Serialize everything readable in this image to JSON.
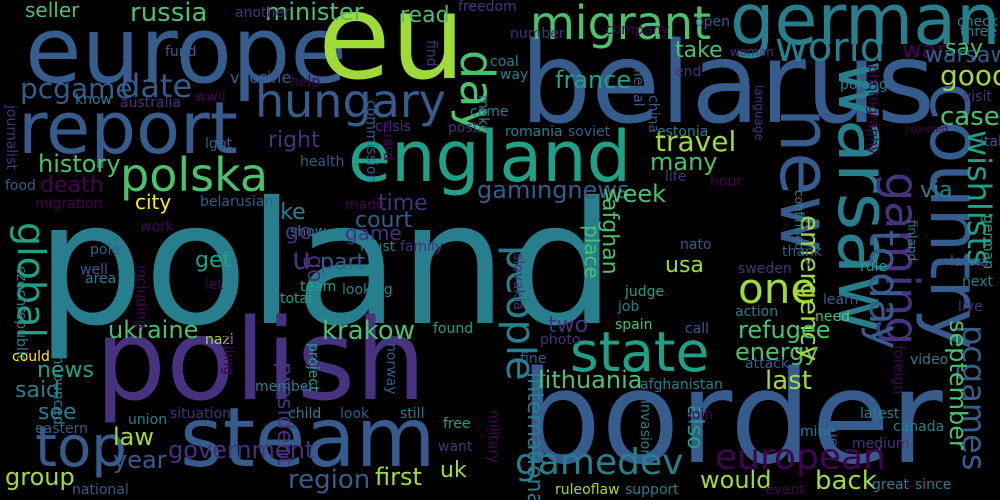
{
  "background": "#000000",
  "palette": [
    "#440154",
    "#46327e",
    "#365c8d",
    "#277f8e",
    "#1fa187",
    "#4ac16d",
    "#a0da39",
    "#fde725"
  ],
  "words": [
    {
      "text": "poland"
    },
    {
      "text": "border"
    },
    {
      "text": "polish"
    },
    {
      "text": "belarus"
    },
    {
      "text": "europe"
    },
    {
      "text": "eu"
    },
    {
      "text": "england"
    },
    {
      "text": "steam"
    },
    {
      "text": "report"
    },
    {
      "text": "germany"
    },
    {
      "text": "country"
    },
    {
      "text": "warsaw"
    },
    {
      "text": "new"
    },
    {
      "text": "state"
    },
    {
      "text": "people"
    },
    {
      "text": "top"
    },
    {
      "text": "migrant"
    },
    {
      "text": "day"
    },
    {
      "text": "hungary"
    },
    {
      "text": "polska"
    },
    {
      "text": "gaming"
    },
    {
      "text": "global"
    },
    {
      "text": "one"
    },
    {
      "text": "world"
    },
    {
      "text": "gamedev"
    },
    {
      "text": "european"
    },
    {
      "text": "today"
    },
    {
      "text": "pcgames"
    },
    {
      "text": "wishlists"
    },
    {
      "text": "travel"
    },
    {
      "text": "u"
    },
    {
      "text": "pcgame"
    },
    {
      "text": "date"
    },
    {
      "text": "russia"
    },
    {
      "text": "ukraine"
    },
    {
      "text": "lithuania"
    },
    {
      "text": "minister"
    },
    {
      "text": "history"
    },
    {
      "text": "president"
    },
    {
      "text": "international"
    },
    {
      "text": "gamingnews"
    },
    {
      "text": "france"
    },
    {
      "text": "last"
    },
    {
      "text": "government"
    },
    {
      "text": "region"
    },
    {
      "text": "first"
    },
    {
      "text": "year"
    },
    {
      "text": "law"
    },
    {
      "text": "group"
    },
    {
      "text": "would"
    },
    {
      "text": "back"
    },
    {
      "text": "energy"
    },
    {
      "text": "emergency"
    },
    {
      "text": "refugee"
    },
    {
      "text": "september"
    },
    {
      "text": "krakow"
    },
    {
      "text": "good"
    },
    {
      "text": "case"
    },
    {
      "text": "seller"
    },
    {
      "text": "read"
    },
    {
      "text": "right"
    },
    {
      "text": "death"
    },
    {
      "text": "city"
    },
    {
      "text": "time"
    },
    {
      "text": "like"
    },
    {
      "text": "court"
    },
    {
      "text": "many"
    },
    {
      "text": "week"
    },
    {
      "text": "take"
    },
    {
      "text": "war"
    },
    {
      "text": "say"
    },
    {
      "text": "go"
    },
    {
      "text": "get"
    },
    {
      "text": "part"
    },
    {
      "text": "usa"
    },
    {
      "text": "via"
    },
    {
      "text": "two"
    },
    {
      "text": "place"
    },
    {
      "text": "news"
    },
    {
      "text": "said"
    },
    {
      "text": "see"
    },
    {
      "text": "also"
    },
    {
      "text": "uk"
    },
    {
      "text": "afghan"
    },
    {
      "text": "game"
    },
    {
      "text": "warsaw"
    },
    {
      "text": "vaccine"
    },
    {
      "text": "australia"
    },
    {
      "text": "journalist"
    },
    {
      "text": "fund"
    },
    {
      "text": "know"
    },
    {
      "text": "help"
    },
    {
      "text": "wwii"
    },
    {
      "text": "commission"
    },
    {
      "text": "number"
    },
    {
      "text": "freedom"
    },
    {
      "text": "another"
    },
    {
      "text": "coal"
    },
    {
      "text": "way"
    },
    {
      "text": "make"
    },
    {
      "text": "come"
    },
    {
      "text": "post"
    },
    {
      "text": "crisis"
    },
    {
      "text": "guard"
    },
    {
      "text": "find"
    },
    {
      "text": "illegal"
    },
    {
      "text": "china"
    },
    {
      "text": "company"
    },
    {
      "text": "open"
    },
    {
      "text": "end"
    },
    {
      "text": "woman"
    },
    {
      "text": "language"
    },
    {
      "text": "poleng"
    },
    {
      "text": "photography"
    },
    {
      "text": "check"
    },
    {
      "text": "three"
    },
    {
      "text": "visit"
    },
    {
      "text": "italy"
    },
    {
      "text": "reported"
    },
    {
      "text": "romania"
    },
    {
      "text": "soviet"
    },
    {
      "text": "estonia"
    },
    {
      "text": "lgbt"
    },
    {
      "text": "health"
    },
    {
      "text": "food"
    },
    {
      "text": "belarusian"
    },
    {
      "text": "migration"
    },
    {
      "text": "made"
    },
    {
      "text": "work"
    },
    {
      "text": "show"
    },
    {
      "text": "must"
    },
    {
      "text": "family"
    },
    {
      "text": "pole"
    },
    {
      "text": "well"
    },
    {
      "text": "area"
    },
    {
      "text": "czechrepublic"
    },
    {
      "text": "including"
    },
    {
      "text": "let"
    },
    {
      "text": "team"
    },
    {
      "text": "total"
    },
    {
      "text": "looking"
    },
    {
      "text": "slovakia"
    },
    {
      "text": "job"
    },
    {
      "text": "judge"
    },
    {
      "text": "hour"
    },
    {
      "text": "life"
    },
    {
      "text": "confirmed"
    },
    {
      "text": "finland"
    },
    {
      "text": "latvia"
    },
    {
      "text": "german"
    },
    {
      "text": "nato"
    },
    {
      "text": "thank"
    },
    {
      "text": "v"
    },
    {
      "text": "rule"
    },
    {
      "text": "sweden"
    },
    {
      "text": "learn"
    },
    {
      "text": "next"
    },
    {
      "text": "live"
    },
    {
      "text": "need"
    },
    {
      "text": "action"
    },
    {
      "text": "call"
    },
    {
      "text": "spain"
    },
    {
      "text": "found"
    },
    {
      "text": "photo"
    },
    {
      "text": "nazi"
    },
    {
      "text": "ruling"
    },
    {
      "text": "project"
    },
    {
      "text": "announced"
    },
    {
      "text": "could"
    },
    {
      "text": "norway"
    },
    {
      "text": "fine"
    },
    {
      "text": "attack"
    },
    {
      "text": "video"
    },
    {
      "text": "foreign"
    },
    {
      "text": "afghanistan"
    },
    {
      "text": "member"
    },
    {
      "text": "football"
    },
    {
      "text": "union"
    },
    {
      "text": "situation"
    },
    {
      "text": "child"
    },
    {
      "text": "look"
    },
    {
      "text": "still"
    },
    {
      "text": "free"
    },
    {
      "text": "want"
    },
    {
      "text": "military"
    },
    {
      "text": "invasion"
    },
    {
      "text": "join"
    },
    {
      "text": "mine"
    },
    {
      "text": "due"
    },
    {
      "text": "latest"
    },
    {
      "text": "medium"
    },
    {
      "text": "canada"
    },
    {
      "text": "eastern"
    },
    {
      "text": "national"
    },
    {
      "text": "ruleoflaw"
    },
    {
      "text": "support"
    },
    {
      "text": "event"
    },
    {
      "text": "great"
    },
    {
      "text": "since"
    },
    {
      "text": "go"
    }
  ]
}
